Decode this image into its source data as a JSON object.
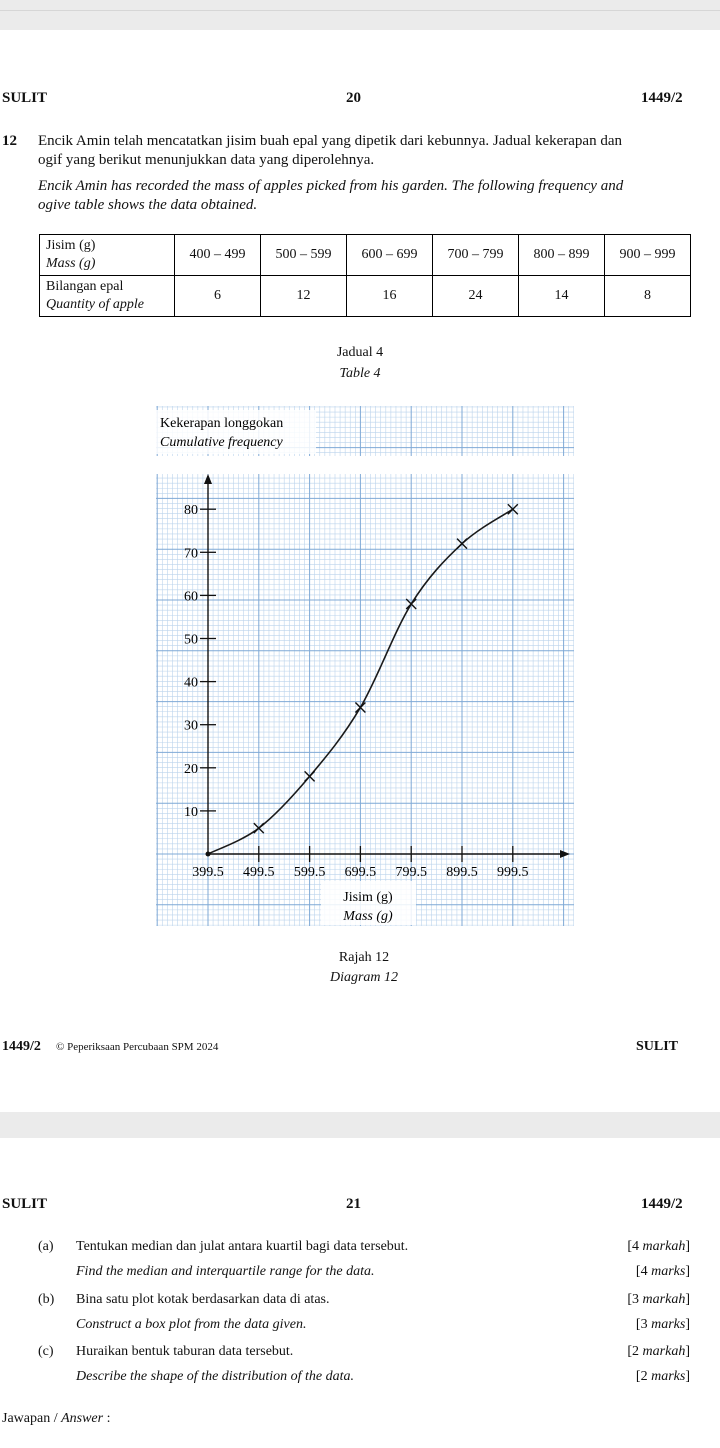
{
  "page1": {
    "header": {
      "left": "SULIT",
      "center": "20",
      "right": "1449/2"
    },
    "question": {
      "number": "12",
      "malay_line1": "Encik Amin telah mencatatkan jisim buah epal yang dipetik dari kebunnya. Jadual kekerapan dan",
      "malay_line2": "ogif yang berikut menunjukkan data yang diperolehnya.",
      "english_line1": "Encik Amin has recorded the mass of apples picked from his garden. The following frequency and",
      "english_line2": "ogive table shows the data obtained."
    },
    "table": {
      "row1_label_malay": "Jisim (g)",
      "row1_label_english": "Mass (g)",
      "row2_label_malay": "Bilangan epal",
      "row2_label_english": "Quantity of apple",
      "classes": [
        "400 – 499",
        "500 – 599",
        "600 – 699",
        "700 – 799",
        "800 – 899",
        "900 – 999"
      ],
      "frequencies": [
        "6",
        "12",
        "16",
        "24",
        "14",
        "8"
      ],
      "caption_malay": "Jadual 4",
      "caption_english": "Table 4"
    },
    "chart_data": {
      "type": "line",
      "title_malay": "Kekerapan longgokan",
      "title_english": "Cumulative frequency",
      "xlabel_malay": "Jisim (g)",
      "xlabel_english": "Mass (g)",
      "x_ticks": [
        "399.5",
        "499.5",
        "599.5",
        "699.5",
        "799.5",
        "899.5",
        "999.5"
      ],
      "y_ticks": [
        "10",
        "20",
        "30",
        "40",
        "50",
        "60",
        "70",
        "80"
      ],
      "x": [
        399.5,
        499.5,
        599.5,
        699.5,
        799.5,
        899.5,
        999.5
      ],
      "y": [
        0,
        6,
        18,
        34,
        58,
        72,
        80
      ],
      "xlim": [
        349.5,
        1049.5
      ],
      "ylim": [
        0,
        90
      ],
      "grid": true,
      "caption_malay": "Rajah 12",
      "caption_english": "Diagram 12"
    },
    "footer": {
      "code": "1449/2",
      "copyright": "© Peperiksaan Percubaan SPM 2024",
      "right": "SULIT"
    }
  },
  "page2": {
    "header": {
      "left": "SULIT",
      "center": "21",
      "right": "1449/2"
    },
    "parts": [
      {
        "label": "(a)",
        "malay": "Tentukan median dan julat antara kuartil bagi data tersebut.",
        "marks_malay": "[4 markah]",
        "english": "Find the median and interquartile range for the data.",
        "marks_english": "[4 marks]"
      },
      {
        "label": "(b)",
        "malay": "Bina satu plot kotak berdasarkan data di atas.",
        "marks_malay": "[3 markah]",
        "english": "Construct a box plot from the data given.",
        "marks_english": "[3 marks]"
      },
      {
        "label": "(c)",
        "malay": "Huraikan bentuk taburan data tersebut.",
        "marks_malay": "[2 markah]",
        "english": "Describe the shape of the distribution of the data.",
        "marks_english": "[2 marks]"
      }
    ],
    "answer_label": "Jawapan / Answer :"
  }
}
